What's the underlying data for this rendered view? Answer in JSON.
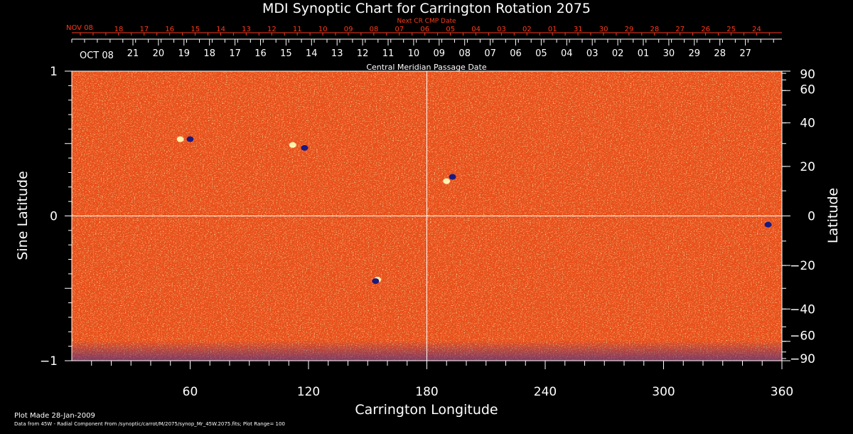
{
  "chart_data": {
    "type": "heatmap",
    "title": "MDI Synoptic Chart for Carrington Rotation 2075",
    "xlabel": "Carrington Longitude",
    "ylabel_left": "Sine Latitude",
    "ylabel_right": "Latitude",
    "xlim": [
      0,
      360
    ],
    "ylim": [
      -1,
      1
    ],
    "x_ticks": [
      60,
      120,
      180,
      240,
      300,
      360
    ],
    "y_ticks_left": [
      {
        "value": 1,
        "label": "1"
      },
      {
        "value": 0,
        "label": "0"
      },
      {
        "value": -1,
        "label": "−1"
      }
    ],
    "y_ticks_right": [
      {
        "lat": 90,
        "label": "90"
      },
      {
        "lat": 60,
        "label": "60"
      },
      {
        "lat": 40,
        "label": "40"
      },
      {
        "lat": 20,
        "label": "20"
      },
      {
        "lat": 0,
        "label": "0"
      },
      {
        "lat": -20,
        "label": "−20"
      },
      {
        "lat": -40,
        "label": "−40"
      },
      {
        "lat": -60,
        "label": "−60"
      },
      {
        "lat": -90,
        "label": "−90"
      }
    ],
    "top_axis_label": "Central Meridian Passage Date",
    "top_axis_month": "OCT 08",
    "top_axis_dates": [
      "21",
      "20",
      "19",
      "18",
      "17",
      "16",
      "15",
      "14",
      "13",
      "12",
      "11",
      "10",
      "09",
      "08",
      "07",
      "06",
      "05",
      "04",
      "03",
      "02",
      "01",
      "30",
      "29",
      "28",
      "27"
    ],
    "next_axis_label": "Next CR CMP Date",
    "next_axis_month": "NOV 08",
    "next_axis_dates": [
      "18",
      "17",
      "16",
      "15",
      "14",
      "13",
      "12",
      "11",
      "10",
      "09",
      "08",
      "07",
      "06",
      "05",
      "04",
      "03",
      "02",
      "01",
      "31",
      "30",
      "29",
      "28",
      "27",
      "26",
      "25",
      "24"
    ],
    "colormap": {
      "positive": "#fff2b0",
      "background": "#e8501a",
      "negative": "#1a1a80"
    },
    "crosshair": {
      "longitude": 180,
      "sine_latitude": 0
    },
    "features": [
      {
        "longitude": 118,
        "sine_latitude": 0.47,
        "polarity": "negative"
      },
      {
        "longitude": 112,
        "sine_latitude": 0.49,
        "polarity": "positive"
      },
      {
        "longitude": 55,
        "sine_latitude": 0.53,
        "polarity": "positive"
      },
      {
        "longitude": 60,
        "sine_latitude": 0.53,
        "polarity": "negative"
      },
      {
        "longitude": 193,
        "sine_latitude": 0.27,
        "polarity": "negative"
      },
      {
        "longitude": 190,
        "sine_latitude": 0.24,
        "polarity": "positive"
      },
      {
        "longitude": 155,
        "sine_latitude": -0.44,
        "polarity": "positive"
      },
      {
        "longitude": 154,
        "sine_latitude": -0.45,
        "polarity": "negative"
      },
      {
        "longitude": 353,
        "sine_latitude": -0.06,
        "polarity": "negative"
      }
    ]
  },
  "footer": {
    "plot_made": "Plot Made 28-Jan-2009",
    "data_from": "Data from 45W - Radial Component From /synoptic/carrot/M/2075/synop_Mr_45W.2075.fits; Plot Range= 100"
  }
}
